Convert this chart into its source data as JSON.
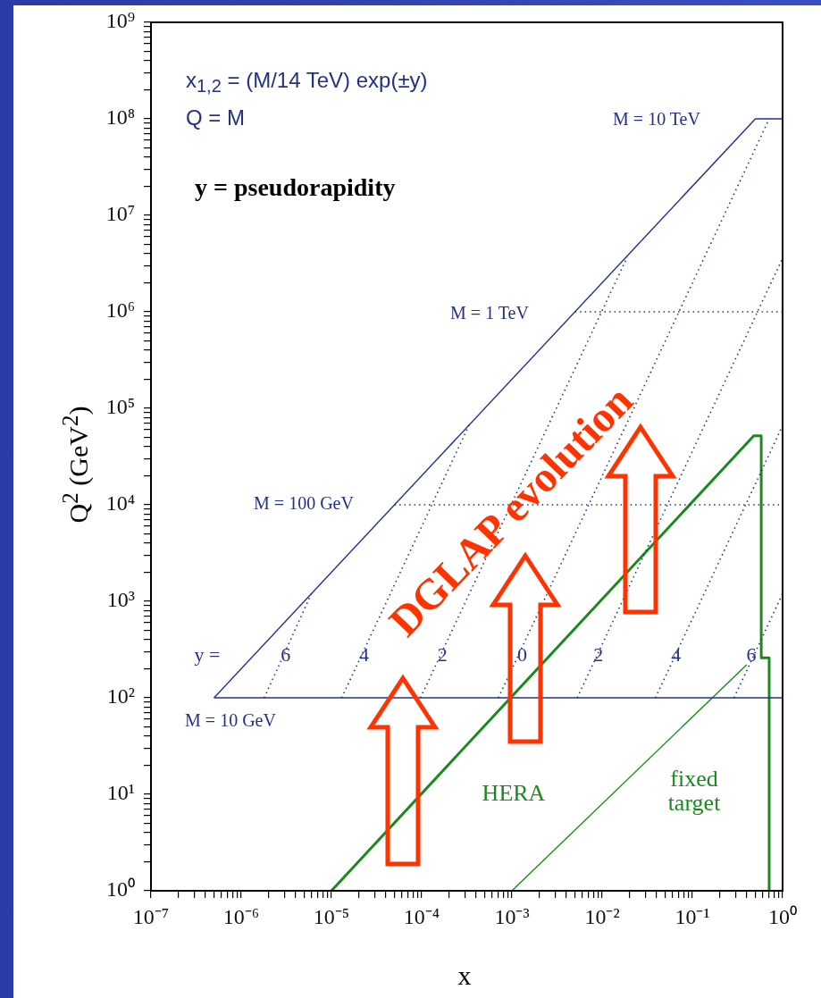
{
  "chart_data": {
    "type": "line",
    "xlabel": "x",
    "ylabel": "Q$^{2}$  (GeV$^{2}$)",
    "log": "xy",
    "grid": false,
    "legend": false,
    "marker": "none",
    "xlim": [
      1e-07,
      1
    ],
    "ylim": [
      1,
      1000000000.0
    ],
    "xticks": [
      {
        "value": 1e-07,
        "label": "10⁻⁷"
      },
      {
        "value": 2e-07,
        "label": null
      },
      {
        "value": 3e-07,
        "label": null
      },
      {
        "value": 4e-07,
        "label": null
      },
      {
        "value": 5e-07,
        "label": null
      },
      {
        "value": 6e-07,
        "label": null
      },
      {
        "value": 7e-07,
        "label": null
      },
      {
        "value": 8e-07,
        "label": null
      },
      {
        "value": 9e-07,
        "label": null
      },
      {
        "value": 1e-06,
        "label": "10⁻⁶"
      },
      {
        "value": 2e-06,
        "label": null
      },
      {
        "value": 3e-06,
        "label": null
      },
      {
        "value": 4e-06,
        "label": null
      },
      {
        "value": 5e-06,
        "label": null
      },
      {
        "value": 6e-06,
        "label": null
      },
      {
        "value": 7e-06,
        "label": null
      },
      {
        "value": 8e-06,
        "label": null
      },
      {
        "value": 9e-06,
        "label": null
      },
      {
        "value": 1e-05,
        "label": "10⁻⁵"
      },
      {
        "value": 2e-05,
        "label": null
      },
      {
        "value": 3e-05,
        "label": null
      },
      {
        "value": 4e-05,
        "label": null
      },
      {
        "value": 5e-05,
        "label": null
      },
      {
        "value": 6e-05,
        "label": null
      },
      {
        "value": 7e-05,
        "label": null
      },
      {
        "value": 8e-05,
        "label": null
      },
      {
        "value": 9e-05,
        "label": null
      },
      {
        "value": 0.0001,
        "label": "10⁻⁴"
      },
      {
        "value": 0.0002,
        "label": null
      },
      {
        "value": 0.0003,
        "label": null
      },
      {
        "value": 0.0004,
        "label": null
      },
      {
        "value": 0.0005,
        "label": null
      },
      {
        "value": 0.0006,
        "label": null
      },
      {
        "value": 0.0007,
        "label": null
      },
      {
        "value": 0.0008,
        "label": null
      },
      {
        "value": 0.0009,
        "label": null
      },
      {
        "value": 0.001,
        "label": "10⁻³"
      },
      {
        "value": 0.002,
        "label": null
      },
      {
        "value": 0.003,
        "label": null
      },
      {
        "value": 0.004,
        "label": null
      },
      {
        "value": 0.005,
        "label": null
      },
      {
        "value": 0.006,
        "label": null
      },
      {
        "value": 0.007,
        "label": null
      },
      {
        "value": 0.008,
        "label": null
      },
      {
        "value": 0.009,
        "label": null
      },
      {
        "value": 0.01,
        "label": "10⁻²"
      },
      {
        "value": 0.02,
        "label": null
      },
      {
        "value": 0.03,
        "label": null
      },
      {
        "value": 0.04,
        "label": null
      },
      {
        "value": 0.05,
        "label": null
      },
      {
        "value": 0.06,
        "label": null
      },
      {
        "value": 0.07,
        "label": null
      },
      {
        "value": 0.08,
        "label": null
      },
      {
        "value": 0.09,
        "label": null
      },
      {
        "value": 0.1,
        "label": "10⁻¹"
      },
      {
        "value": 0.2,
        "label": null
      },
      {
        "value": 0.3,
        "label": null
      },
      {
        "value": 0.4,
        "label": null
      },
      {
        "value": 0.5,
        "label": null
      },
      {
        "value": 0.6,
        "label": null
      },
      {
        "value": 0.7,
        "label": null
      },
      {
        "value": 0.8,
        "label": null
      },
      {
        "value": 0.9,
        "label": null
      },
      {
        "value": 1,
        "label": "10⁰"
      }
    ],
    "yticks": [
      {
        "value": 1,
        "label": "10⁰"
      },
      {
        "value": 2,
        "label": null
      },
      {
        "value": 3,
        "label": null
      },
      {
        "value": 4,
        "label": null
      },
      {
        "value": 5,
        "label": null
      },
      {
        "value": 6,
        "label": null
      },
      {
        "value": 7,
        "label": null
      },
      {
        "value": 8,
        "label": null
      },
      {
        "value": 9,
        "label": null
      },
      {
        "value": 10,
        "label": "10¹"
      },
      {
        "value": 20,
        "label": null
      },
      {
        "value": 30,
        "label": null
      },
      {
        "value": 40,
        "label": null
      },
      {
        "value": 50,
        "label": null
      },
      {
        "value": 60,
        "label": null
      },
      {
        "value": 70,
        "label": null
      },
      {
        "value": 80,
        "label": null
      },
      {
        "value": 90,
        "label": null
      },
      {
        "value": 100,
        "label": "10²"
      },
      {
        "value": 200,
        "label": null
      },
      {
        "value": 300,
        "label": null
      },
      {
        "value": 400,
        "label": null
      },
      {
        "value": 500,
        "label": null
      },
      {
        "value": 600,
        "label": null
      },
      {
        "value": 700,
        "label": null
      },
      {
        "value": 800,
        "label": null
      },
      {
        "value": 900,
        "label": null
      },
      {
        "value": 1000,
        "label": "10³"
      },
      {
        "value": 2000,
        "label": null
      },
      {
        "value": 3000,
        "label": null
      },
      {
        "value": 4000,
        "label": null
      },
      {
        "value": 5000,
        "label": null
      },
      {
        "value": 6000,
        "label": null
      },
      {
        "value": 7000,
        "label": null
      },
      {
        "value": 8000,
        "label": null
      },
      {
        "value": 9000,
        "label": null
      },
      {
        "value": 10000.0,
        "label": "10⁴"
      },
      {
        "value": 20000.0,
        "label": null
      },
      {
        "value": 30000.0,
        "label": null
      },
      {
        "value": 40000.0,
        "label": null
      },
      {
        "value": 50000.0,
        "label": null
      },
      {
        "value": 60000.0,
        "label": null
      },
      {
        "value": 70000.0,
        "label": null
      },
      {
        "value": 80000.0,
        "label": null
      },
      {
        "value": 90000.0,
        "label": null
      },
      {
        "value": 100000.0,
        "label": "10⁵"
      },
      {
        "value": 200000.0,
        "label": null
      },
      {
        "value": 300000.0,
        "label": null
      },
      {
        "value": 400000.0,
        "label": null
      },
      {
        "value": 500000.0,
        "label": null
      },
      {
        "value": 600000.0,
        "label": null
      },
      {
        "value": 700000.0,
        "label": null
      },
      {
        "value": 800000.0,
        "label": null
      },
      {
        "value": 900000.0,
        "label": null
      },
      {
        "value": 1000000.0,
        "label": "10⁶"
      },
      {
        "value": 2000000.0,
        "label": null
      },
      {
        "value": 3000000.0,
        "label": null
      },
      {
        "value": 4000000.0,
        "label": null
      },
      {
        "value": 5000000.0,
        "label": null
      },
      {
        "value": 6000000.0,
        "label": null
      },
      {
        "value": 7000000.0,
        "label": null
      },
      {
        "value": 8000000.0,
        "label": null
      },
      {
        "value": 9000000.0,
        "label": null
      },
      {
        "value": 10000000.0,
        "label": "10⁷"
      },
      {
        "value": 20000000.0,
        "label": null
      },
      {
        "value": 30000000.0,
        "label": null
      },
      {
        "value": 40000000.0,
        "label": null
      },
      {
        "value": 50000000.0,
        "label": null
      },
      {
        "value": 60000000.0,
        "label": null
      },
      {
        "value": 70000000.0,
        "label": null
      },
      {
        "value": 80000000.0,
        "label": null
      },
      {
        "value": 90000000.0,
        "label": null
      },
      {
        "value": 100000000.0,
        "label": "10⁸"
      },
      {
        "value": 200000000.0,
        "label": null
      },
      {
        "value": 300000000.0,
        "label": null
      },
      {
        "value": 400000000.0,
        "label": null
      },
      {
        "value": 500000000.0,
        "label": null
      },
      {
        "value": 600000000.0,
        "label": null
      },
      {
        "value": 700000000.0,
        "label": null
      },
      {
        "value": 800000000.0,
        "label": null
      },
      {
        "value": 900000000.0,
        "label": null
      },
      {
        "value": 1000000000.0,
        "label": "10⁹"
      }
    ],
    "series": [
      {
        "color": "#22308c",
        "line_style": "solid",
        "x": [
          5e-07,
          0.5,
          1
        ],
        "values": [
          100,
          100000000.0,
          100000000.0
        ]
      },
      {
        "color": "#22308c",
        "line_style": "solid",
        "x": [
          5e-07,
          1
        ],
        "values": [
          100,
          100
        ]
      },
      {
        "color": "#22308c",
        "line_style": "dotted",
        "x": [
          5e-05,
          1
        ],
        "values": [
          10000.0,
          10000.0
        ]
      },
      {
        "color": "#22308c",
        "line_style": "dotted",
        "x": [
          0.005,
          1
        ],
        "values": [
          1000000.0,
          1000000.0
        ]
      },
      {
        "color": "#22308c",
        "line_style": "dotted",
        "x": [
          1.8e-06,
          6e-06
        ],
        "values": [
          100,
          1200
        ]
      },
      {
        "color": "#22308c",
        "line_style": "dotted",
        "x": [
          1.3e-05,
          0.00034
        ],
        "values": [
          100,
          69000.0
        ]
      },
      {
        "color": "#22308c",
        "line_style": "dotted",
        "x": [
          9.7e-05,
          0.019
        ],
        "values": [
          100,
          3700000.0
        ]
      },
      {
        "color": "#22308c",
        "line_style": "dotted",
        "x": [
          0.00071,
          0.71
        ],
        "values": [
          100,
          100000000.0
        ]
      },
      {
        "color": "#22308c",
        "line_style": "dotted",
        "x": [
          0.0053,
          1
        ],
        "values": [
          100,
          3600000.0
        ]
      },
      {
        "color": "#22308c",
        "line_style": "dotted",
        "x": [
          0.039,
          1
        ],
        "values": [
          100,
          66000.0
        ]
      },
      {
        "color": "#22308c",
        "line_style": "dotted",
        "x": [
          0.29,
          1
        ],
        "values": [
          100,
          1200
        ]
      },
      {
        "color": "#1a8a1a",
        "line_style": "solid",
        "x": [
          1e-05,
          0.48,
          0.58,
          0.58,
          0.71,
          0.71
        ],
        "values": [
          1,
          52000.0,
          52000.0,
          260,
          260,
          1
        ]
      },
      {
        "color": "#1a8a1a",
        "line_style": "solid",
        "x": [
          0.001,
          0.4
        ],
        "values": [
          1,
          220
        ]
      }
    ],
    "annotations": [
      "x$_{1,2}$ = (M/14 TeV) exp(±y)",
      "Q = M",
      "y = pseudorapidity",
      "M = 10 TeV",
      "M = 1 TeV",
      "M = 100 GeV",
      "M = 10 GeV",
      "y =",
      {
        "text": "6",
        "x": 3.1e-06,
        "y": 280
      },
      {
        "text": "4",
        "x": 2.3e-05,
        "y": 280
      },
      {
        "text": "2",
        "x": 0.00017,
        "y": 280
      },
      {
        "text": "0",
        "x": 0.0013,
        "y": 280
      },
      {
        "text": "2",
        "x": 0.0091,
        "y": 280
      },
      {
        "text": "4",
        "x": 0.066,
        "y": 280
      },
      {
        "text": "6",
        "x": 0.45,
        "y": 280
      },
      "DGLAP evolution",
      "HERA",
      "fixed\ntarget"
    ]
  }
}
